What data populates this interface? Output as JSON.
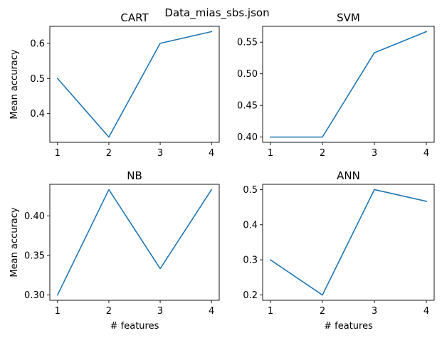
{
  "figure": {
    "suptitle": "Data_mias_sbs.json"
  },
  "chart_data": [
    {
      "type": "line",
      "title": "CART",
      "xlabel": "",
      "ylabel": "Mean accuracy",
      "x": [
        1,
        2,
        3,
        4
      ],
      "y": [
        0.5,
        0.3333,
        0.6,
        0.6333
      ],
      "xlim": [
        0.85,
        4.15
      ],
      "ylim": [
        0.3183,
        0.6483
      ],
      "xticks": [
        1,
        2,
        3,
        4
      ],
      "yticks": [
        0.4,
        0.5,
        0.6
      ],
      "ytick_labels": [
        "0.4",
        "0.5",
        "0.6"
      ],
      "color": "#1f77b4",
      "grid": false
    },
    {
      "type": "line",
      "title": "SVM",
      "xlabel": "",
      "ylabel": "",
      "x": [
        1,
        2,
        3,
        4
      ],
      "y": [
        0.4,
        0.4,
        0.5333,
        0.5667
      ],
      "xlim": [
        0.85,
        4.15
      ],
      "ylim": [
        0.3917,
        0.575
      ],
      "xticks": [
        1,
        2,
        3,
        4
      ],
      "yticks": [
        0.4,
        0.45,
        0.5,
        0.55
      ],
      "ytick_labels": [
        "0.40",
        "0.45",
        "0.50",
        "0.55"
      ],
      "color": "#1f77b4",
      "grid": false
    },
    {
      "type": "line",
      "title": "NB",
      "xlabel": "# features",
      "ylabel": "Mean accuracy",
      "x": [
        1,
        2,
        3,
        4
      ],
      "y": [
        0.3,
        0.4333,
        0.3333,
        0.4333
      ],
      "xlim": [
        0.85,
        4.15
      ],
      "ylim": [
        0.2933,
        0.44
      ],
      "xticks": [
        1,
        2,
        3,
        4
      ],
      "yticks": [
        0.3,
        0.35,
        0.4
      ],
      "ytick_labels": [
        "0.30",
        "0.35",
        "0.40"
      ],
      "color": "#1f77b4",
      "grid": false
    },
    {
      "type": "line",
      "title": "ANN",
      "xlabel": "# features",
      "ylabel": "",
      "x": [
        1,
        2,
        3,
        4
      ],
      "y": [
        0.3,
        0.2,
        0.5,
        0.4667
      ],
      "xlim": [
        0.85,
        4.15
      ],
      "ylim": [
        0.185,
        0.515
      ],
      "xticks": [
        1,
        2,
        3,
        4
      ],
      "yticks": [
        0.2,
        0.3,
        0.4,
        0.5
      ],
      "ytick_labels": [
        "0.2",
        "0.3",
        "0.4",
        "0.5"
      ],
      "color": "#1f77b4",
      "grid": false
    }
  ]
}
